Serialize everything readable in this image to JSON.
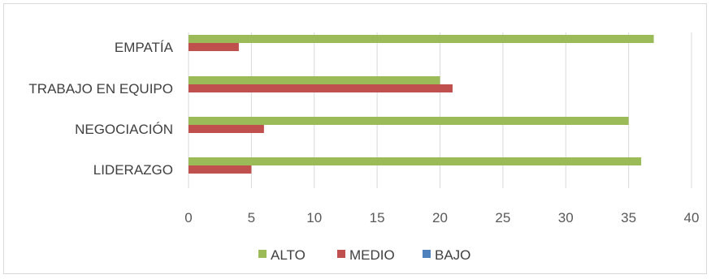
{
  "chart_data": {
    "type": "bar",
    "orientation": "horizontal",
    "title": "",
    "xlabel": "",
    "ylabel": "",
    "categories": [
      "EMPATÍA",
      "TRABAJO EN EQUIPO",
      "NEGOCIACIÓN",
      "LIDERAZGO"
    ],
    "series": [
      {
        "name": "ALTO",
        "color": "#9bbb59",
        "values": [
          37,
          20,
          35,
          36
        ]
      },
      {
        "name": "MEDIO",
        "color": "#c0504d",
        "values": [
          4,
          21,
          6,
          5
        ]
      },
      {
        "name": "BAJO",
        "color": "#4f81bd",
        "values": [
          0,
          0,
          0,
          0
        ]
      }
    ],
    "xlim": [
      0,
      40
    ],
    "xticks": [
      "0",
      "5",
      "10",
      "15",
      "20",
      "25",
      "30",
      "35",
      "40"
    ],
    "grid": true,
    "legend_position": "bottom"
  }
}
